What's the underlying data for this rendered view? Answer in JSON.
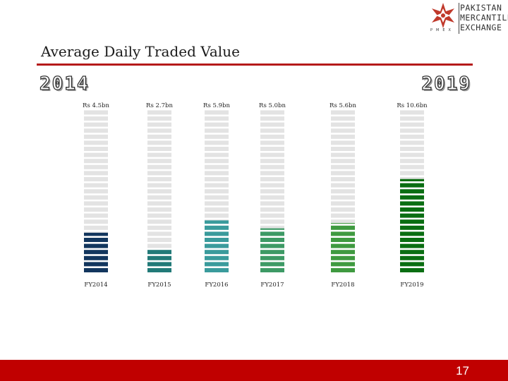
{
  "logo": {
    "lines": [
      "PAKISTAN",
      "MERCANTILE",
      "EXCHANGE"
    ],
    "letters": "PMEX"
  },
  "title": "Average Daily Traded Value",
  "year_start": "2014",
  "year_end": "2019",
  "page_number": "17",
  "colors": {
    "empty": "#e3e3e3",
    "title_rule": "#b51a1a",
    "footer": "#c00000"
  },
  "chart_data": {
    "type": "bar",
    "style": "segmented-vertical-bars",
    "categories": [
      "FY2014",
      "FY2015",
      "FY2016",
      "FY2017",
      "FY2018",
      "FY2019"
    ],
    "value_labels": [
      "Rs 4.5bn",
      "Rs 2.7bn",
      "Rs 5.9bn",
      "Rs 5.0bn",
      "Rs 5.6bn",
      "Rs 10.6bn"
    ],
    "values": [
      4.5,
      2.7,
      5.9,
      5.0,
      5.6,
      10.6
    ],
    "ylim": [
      0,
      18.4
    ],
    "colors": [
      "#12365e",
      "#227a78",
      "#3a9b9c",
      "#3d9a65",
      "#3f9a40",
      "#0a6e12"
    ],
    "title": "",
    "xlabel": "",
    "ylabel": "",
    "grid": false,
    "legend": "none"
  }
}
